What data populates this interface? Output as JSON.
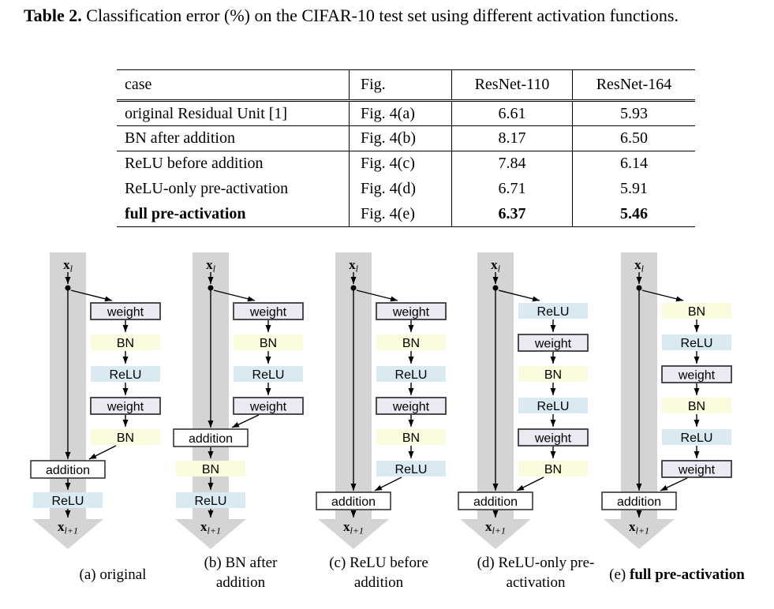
{
  "table_caption": {
    "label": "Table 2.",
    "text": "Classification error (%) on the CIFAR-10 test set using different activation functions."
  },
  "table": {
    "headers": [
      "case",
      "Fig.",
      "ResNet-110",
      "ResNet-164"
    ],
    "rows": [
      {
        "case": "original Residual Unit [1]",
        "fig": "Fig. 4(a)",
        "resnet110": "6.61",
        "resnet164": "5.93",
        "bold": false,
        "rule_below": true
      },
      {
        "case": "BN after addition",
        "fig": "Fig. 4(b)",
        "resnet110": "8.17",
        "resnet164": "6.50",
        "bold": false,
        "rule_below": true
      },
      {
        "case": "ReLU before addition",
        "fig": "Fig. 4(c)",
        "resnet110": "7.84",
        "resnet164": "6.14",
        "bold": false,
        "rule_below": false
      },
      {
        "case": "ReLU-only pre-activation",
        "fig": "Fig. 4(d)",
        "resnet110": "6.71",
        "resnet164": "5.91",
        "bold": false,
        "rule_below": false
      },
      {
        "case": "full pre-activation",
        "fig": "Fig. 4(e)",
        "resnet110": "6.37",
        "resnet164": "5.46",
        "bold": true,
        "rule_below": false
      }
    ]
  },
  "diagrams": {
    "colors": {
      "weight_fill": "#eaeaf3",
      "weight_border": "#3b3b3b",
      "bn_fill": "#fbfbdd",
      "relu_fill": "#d9eaf3",
      "band": "#d4d4d4",
      "addition_fill": "#ffffff",
      "addition_border": "#1a1a1a",
      "line": "#000000"
    },
    "node_labels": {
      "weight": "weight",
      "bn": "BN",
      "relu": "ReLU",
      "addition": "addition"
    },
    "input_label": {
      "base": "x",
      "sub": "l"
    },
    "output_label": {
      "base": "x",
      "sub": "l+1"
    },
    "units": [
      {
        "id": "a",
        "branch": [
          "weight",
          "bn",
          "relu",
          "weight",
          "bn"
        ],
        "after_addition": [
          "relu"
        ],
        "caption_prefix": "(a)",
        "caption_text": "original",
        "caption_bold": false
      },
      {
        "id": "b",
        "branch": [
          "weight",
          "bn",
          "relu",
          "weight"
        ],
        "after_addition": [
          "bn",
          "relu"
        ],
        "caption_prefix": "(b)",
        "caption_text": "BN after addition",
        "caption_bold": false
      },
      {
        "id": "c",
        "branch": [
          "weight",
          "bn",
          "relu",
          "weight",
          "bn",
          "relu"
        ],
        "after_addition": [],
        "caption_prefix": "(c)",
        "caption_text": "ReLU before addition",
        "caption_bold": false
      },
      {
        "id": "d",
        "branch": [
          "relu",
          "weight",
          "bn",
          "relu",
          "weight",
          "bn"
        ],
        "after_addition": [],
        "caption_prefix": "(d)",
        "caption_text": "ReLU-only pre-activation",
        "caption_bold": false
      },
      {
        "id": "e",
        "branch": [
          "bn",
          "relu",
          "weight",
          "bn",
          "relu",
          "weight"
        ],
        "after_addition": [],
        "caption_prefix": "(e)",
        "caption_text": "full pre-activation",
        "caption_bold": true
      }
    ]
  }
}
